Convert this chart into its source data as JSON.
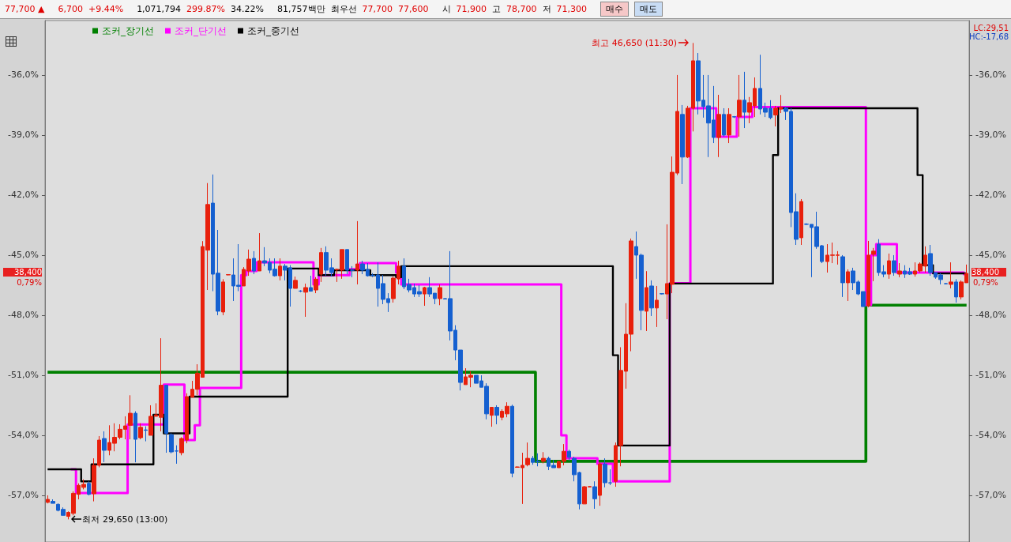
{
  "chart_data": {
    "type": "candlestick",
    "legend": "top left",
    "tick_labels": "y",
    "categories": [
      null,
      null,
      null,
      null,
      null,
      null,
      null,
      null,
      null,
      null,
      null,
      null,
      null,
      null,
      null,
      null,
      null,
      null,
      null,
      null,
      null,
      null,
      null,
      null,
      null,
      null,
      null,
      null,
      null,
      null,
      null,
      null,
      null,
      null,
      null,
      null,
      null,
      null,
      null,
      null,
      null,
      null,
      null,
      null,
      null,
      null,
      null,
      null,
      null,
      null,
      null,
      null,
      null,
      null,
      null,
      null,
      null,
      null,
      null,
      null,
      null,
      null,
      null,
      null,
      null,
      null,
      null,
      null,
      null,
      null,
      null,
      null,
      null,
      null,
      null,
      null,
      null,
      null,
      null,
      null,
      null,
      null,
      null,
      null,
      null,
      null,
      null,
      null,
      null,
      null,
      null,
      null,
      null,
      null,
      null,
      null,
      null,
      null,
      null,
      null,
      null,
      null,
      null,
      null,
      null,
      null,
      null,
      null,
      null,
      null,
      null,
      null,
      null,
      null,
      null,
      null,
      null,
      null,
      null,
      null,
      null,
      null,
      null,
      null,
      null,
      null,
      null,
      null,
      null,
      null,
      null,
      null,
      null,
      null,
      null,
      null,
      null,
      null,
      null,
      null,
      null,
      null,
      null,
      null,
      null,
      null,
      null,
      null,
      null,
      null,
      null,
      null,
      null,
      null,
      null,
      null,
      null,
      null,
      null,
      null,
      null,
      null,
      null,
      null,
      null,
      null,
      null,
      null,
      null,
      null,
      null,
      null,
      null,
      null,
      null,
      null,
      null,
      null,
      null
    ],
    "ylim": [
      -59.33,
      -33.28
    ],
    "yticks": [
      {
        "value": -36,
        "label": "-36,0%"
      },
      {
        "value": -39,
        "label": "-39,0%"
      },
      {
        "value": -42,
        "label": "-42,0%"
      },
      {
        "value": -45,
        "label": "-45,0%"
      },
      {
        "value": -48,
        "label": "-48,0%"
      },
      {
        "value": -51,
        "label": "-51,0%"
      },
      {
        "value": -54,
        "label": "-54,0%"
      },
      {
        "value": -57,
        "label": "-57,0%"
      }
    ],
    "y2lim": [
      -59.33,
      -33.28
    ],
    "y2ticks": [
      {
        "value": -36,
        "label": "-36,0%"
      },
      {
        "value": -39,
        "label": "-39,0%"
      },
      {
        "value": -42,
        "label": "-42,0%"
      },
      {
        "value": -45,
        "label": "-45,0%"
      },
      {
        "value": -48,
        "label": "-48,0%"
      },
      {
        "value": -51,
        "label": "-51,0%"
      },
      {
        "value": -54,
        "label": "-54,0%"
      },
      {
        "value": -57,
        "label": "-57,0%"
      }
    ],
    "annotations": [
      "최고 46,650 (11:30)",
      "최저 29,650 (13:00)",
      "38,400",
      "0,79%",
      "38,400",
      "0,79%",
      "LC:29,51",
      "HC:-17,68",
      "77,700 ▲",
      "6,700",
      "+9.44%",
      "1,071,794",
      "299.87%",
      "34.22%",
      "81,757백만",
      "최우선",
      "77,700",
      "77,600",
      "시",
      "71,900",
      "고",
      "78,700",
      "저",
      "71,300",
      "매수",
      "매도"
    ],
    "series": [
      {
        "colors": [
          "#e8200c",
          "#1560d0",
          "#1560d0",
          "#1560d0",
          "#e8200c",
          "#e8200c",
          "#e8200c",
          "#e8200c",
          "#1560d0",
          "#e8200c",
          "#e8200c",
          "#1560d0",
          "#e8200c",
          "#e8200c",
          "#e8200c",
          "#e8200c",
          "#e8200c",
          "#1560d0",
          "#e8200c",
          "#1560d0",
          "#e8200c",
          "#e8200c",
          "#e8200c",
          "#1560d0",
          "#1560d0",
          "#1560d0",
          "#e8200c",
          "#e8200c",
          "#e8200c",
          "#e8200c",
          "#e8200c",
          "#e8200c",
          "#1560d0",
          "#1560d0",
          "#e8200c",
          "#e8200c",
          "#1560d0",
          "#1560d0",
          "#e8200c",
          "#e8200c",
          "#1560d0",
          "#e8200c",
          "#1560d0",
          "#1560d0",
          "#1560d0",
          "#e8200c",
          "#1560d0",
          "#1560d0",
          "#e8200c",
          "#1560d0",
          "#e8200c",
          "#1560d0",
          "#e8200c",
          "#e8200c",
          "#1560d0",
          "#1560d0",
          "#e8200c",
          "#e8200c",
          "#1560d0",
          "#1560d0",
          "#e8200c",
          "#1560d0",
          "#1560d0",
          "#1560d0",
          "#1560d0",
          "#1560d0",
          "#1560d0",
          "#e8200c",
          "#e8200c",
          "#1560d0",
          "#1560d0",
          "#1560d0",
          "#1560d0",
          "#e8200c",
          "#1560d0",
          "#1560d0",
          "#e8200c",
          "#1560d0",
          "#1560d0",
          "#1560d0",
          "#1560d0",
          "#e8200c",
          "#e8200c",
          "#1560d0",
          "#1560d0",
          "#1560d0",
          "#e8200c",
          "#1560d0",
          "#e8200c",
          "#e8200c",
          "#1560d0",
          "#e8200c",
          "#e8200c",
          "#e8200c",
          "#1560d0",
          "#1560d0",
          "#e8200c",
          "#1560d0",
          "#1560d0",
          "#e8200c",
          "#e8200c",
          "#1560d0",
          "#1560d0",
          "#1560d0",
          "#e8200c",
          "#e8200c",
          "#1560d0",
          "#e8200c",
          "#1560d0",
          "#1560d0",
          "#e8200c",
          "#e8200c",
          "#e8200c",
          "#e8200c",
          "#1560d0",
          "#1560d0",
          "#e8200c",
          "#1560d0",
          "#e8200c",
          "#1560d0",
          "#e8200c",
          "#e8200c",
          "#e8200c",
          "#1560d0",
          "#e8200c",
          "#e8200c",
          "#1560d0",
          "#1560d0",
          "#1560d0",
          "#1560d0",
          "#e8200c",
          "#1560d0",
          "#e8200c",
          "#1560d0",
          "#e8200c",
          "#1560d0",
          "#e8200c",
          "#e8200c",
          "#1560d0",
          "#1560d0",
          "#1560d0",
          "#e8200c",
          "#e8200c",
          "#1560d0",
          "#1560d0",
          "#1560d0",
          "#e8200c",
          "#1560d0",
          "#1560d0",
          "#1560d0",
          "#1560d0",
          "#e8200c",
          "#e8200c",
          "#e8200c",
          "#1560d0",
          "#e8200c",
          "#1560d0",
          "#1560d0",
          "#1560d0",
          "#e8200c",
          "#e8200c",
          "#1560d0",
          "#1560d0",
          "#e8200c",
          "#1560d0",
          "#e8200c",
          "#1560d0",
          "#1560d0",
          "#e8200c",
          "#e8200c",
          "#e8200c",
          "#1560d0",
          "#1560d0",
          "#1560d0",
          "#1560d0",
          "#e8200c",
          "#1560d0",
          "#e8200c",
          "#e8200c"
        ],
        "ohlc": [
          [
            -57.35,
            -57.0,
            -57.4,
            -57.2
          ],
          [
            -57.3,
            -57.2,
            -57.4,
            -57.4
          ],
          [
            -57.45,
            -57.4,
            -57.8,
            -57.75
          ],
          [
            -57.7,
            -57.6,
            -58.0,
            -58.0
          ],
          [
            -58.05,
            -57.8,
            -58.2,
            -57.85
          ],
          [
            -57.9,
            -56.8,
            -58.0,
            -56.9
          ],
          [
            -56.95,
            -56.4,
            -57.2,
            -56.5
          ],
          [
            -56.6,
            -56.2,
            -56.7,
            -56.45
          ],
          [
            -56.4,
            -56.3,
            -57.0,
            -56.95
          ],
          [
            -56.92,
            -55.15,
            -57.3,
            -55.5
          ],
          [
            -55.5,
            -54.04,
            -55.6,
            -54.24
          ],
          [
            -54.16,
            -53.8,
            -55.34,
            -54.75
          ],
          [
            -54.75,
            -53.5,
            -55.0,
            -54.36
          ],
          [
            -54.4,
            -53.4,
            -54.8,
            -54.1
          ],
          [
            -54.1,
            -53.45,
            -54.2,
            -53.7
          ],
          [
            -53.7,
            -53.05,
            -54.2,
            -53.53
          ],
          [
            -53.5,
            -52.0,
            -54.2,
            -52.9
          ],
          [
            -52.9,
            -52.8,
            -55.35,
            -54.2
          ],
          [
            -54.12,
            -53.4,
            -54.2,
            -53.6
          ],
          [
            -53.73,
            -53.55,
            -54.3,
            -53.75
          ],
          [
            -54.0,
            -52.5,
            -54.0,
            -53.05
          ],
          [
            -53.05,
            -52.4,
            -53.05,
            -52.98
          ],
          [
            -53.1,
            -49.15,
            -53.8,
            -51.5
          ],
          [
            -51.5,
            -51.5,
            -54.87,
            -53.9
          ],
          [
            -53.97,
            -53.9,
            -54.9,
            -54.83
          ],
          [
            -54.78,
            -54.5,
            -55.42,
            -54.79
          ],
          [
            -54.87,
            -54.1,
            -55.0,
            -54.16
          ],
          [
            -54.24,
            -51.9,
            -54.4,
            -52.07
          ],
          [
            -52.1,
            -51.28,
            -52.1,
            -51.7
          ],
          [
            -51.7,
            -50.45,
            -51.99,
            -50.9
          ],
          [
            -51.1,
            -44.3,
            -51.1,
            -44.57
          ],
          [
            -44.75,
            -41.4,
            -46.74,
            -42.47
          ],
          [
            -42.4,
            -40.97,
            -46.8,
            -45.95
          ],
          [
            -45.9,
            -43.74,
            -48.0,
            -47.8
          ],
          [
            -47.84,
            -46.2,
            -48.0,
            -46.34
          ],
          [
            -45.99,
            -45.95,
            -46.0,
            -45.97
          ],
          [
            -45.99,
            -45.16,
            -47.29,
            -46.54
          ],
          [
            -46.5,
            -44.45,
            -46.8,
            -46.56
          ],
          [
            -46.54,
            -45.6,
            -46.54,
            -45.71
          ],
          [
            -45.79,
            -44.72,
            -46.03,
            -45.2
          ],
          [
            -45.16,
            -44.8,
            -45.95,
            -45.79
          ],
          [
            -45.79,
            -43.9,
            -45.79,
            -45.28
          ],
          [
            -45.28,
            -44.6,
            -45.55,
            -45.39
          ],
          [
            -45.36,
            -45.16,
            -45.9,
            -45.75
          ],
          [
            -45.7,
            -45.16,
            -46.07,
            -46.03
          ],
          [
            -46.03,
            -45.16,
            -46.26,
            -45.55
          ],
          [
            -45.55,
            -45.44,
            -46.26,
            -45.75
          ],
          [
            -45.63,
            -45.5,
            -47.57,
            -46.66
          ],
          [
            -46.66,
            -46.07,
            -46.66,
            -46.26
          ],
          [
            -46.79,
            -46.75,
            -46.85,
            -46.8
          ],
          [
            -46.85,
            -46.42,
            -48.08,
            -46.62
          ],
          [
            -46.62,
            -46.03,
            -46.82,
            -46.8
          ],
          [
            -46.74,
            -46.1,
            -46.9,
            -46.2
          ],
          [
            -45.95,
            -44.64,
            -46.34,
            -44.87
          ],
          [
            -44.87,
            -44.56,
            -46.03,
            -45.75
          ],
          [
            -45.63,
            -45.16,
            -46.07,
            -45.87
          ],
          [
            -45.73,
            -45.67,
            -46.34,
            -45.71
          ],
          [
            -45.75,
            -44.72,
            -46.18,
            -44.72
          ],
          [
            -44.72,
            -44.72,
            -45.95,
            -45.75
          ],
          [
            -45.75,
            -45.55,
            -46.1,
            -45.76
          ],
          [
            -45.75,
            -43.3,
            -46.46,
            -45.44
          ],
          [
            -45.44,
            -45.28,
            -45.95,
            -45.75
          ],
          [
            -45.71,
            -45.4,
            -46.07,
            -46.03
          ],
          [
            -46.0,
            -45.9,
            -46.1,
            -46.02
          ],
          [
            -45.99,
            -45.36,
            -47.57,
            -46.66
          ],
          [
            -46.42,
            -45.99,
            -47.45,
            -47.21
          ],
          [
            -47.17,
            -46.9,
            -47.84,
            -47.37
          ],
          [
            -47.17,
            -46.07,
            -47.37,
            -46.15
          ],
          [
            -46.19,
            -45.28,
            -46.46,
            -45.55
          ],
          [
            -45.55,
            -45.16,
            -46.7,
            -46.58
          ],
          [
            -46.46,
            -46.18,
            -46.86,
            -46.74
          ],
          [
            -46.62,
            -46.42,
            -47.09,
            -46.94
          ],
          [
            -46.82,
            -46.5,
            -47.09,
            -46.94
          ],
          [
            -46.94,
            -46.58,
            -47.53,
            -46.62
          ],
          [
            -46.62,
            -46.1,
            -47.09,
            -46.94
          ],
          [
            -46.9,
            -46.9,
            -47.45,
            -47.17
          ],
          [
            -47.17,
            -46.46,
            -47.5,
            -46.62
          ],
          [
            -47.17,
            -47.15,
            -47.2,
            -47.19
          ],
          [
            -47.17,
            -44.8,
            -49.26,
            -48.79
          ],
          [
            -48.75,
            -48.5,
            -50.25,
            -49.74
          ],
          [
            -49.74,
            -49.74,
            -51.76,
            -51.36
          ],
          [
            -51.47,
            -50.65,
            -51.47,
            -51.08
          ],
          [
            -51.1,
            -50.8,
            -51.6,
            -51.0
          ],
          [
            -51.0,
            -51.0,
            -51.4,
            -51.4
          ],
          [
            -51.28,
            -51.0,
            -51.6,
            -51.6
          ],
          [
            -51.55,
            -51.4,
            -53.2,
            -52.93
          ],
          [
            -53.0,
            -52.6,
            -53.57,
            -52.6
          ],
          [
            -52.6,
            -52.5,
            -53.45,
            -53.0
          ],
          [
            -53.1,
            -52.7,
            -53.25,
            -52.8
          ],
          [
            -52.93,
            -52.35,
            -53.1,
            -52.55
          ],
          [
            -52.55,
            -52.47,
            -56.1,
            -55.9
          ],
          [
            -55.6,
            -55.55,
            -55.62,
            -55.58
          ],
          [
            -55.62,
            -54.87,
            -57.43,
            -55.5
          ],
          [
            -55.47,
            -54.36,
            -55.55,
            -55.15
          ],
          [
            -55.15,
            -55.03,
            -55.47,
            -55.35
          ],
          [
            -55.3,
            -54.9,
            -55.55,
            -55.32
          ],
          [
            -55.3,
            -54.84,
            -55.4,
            -55.15
          ],
          [
            -55.15,
            -55.07,
            -55.74,
            -55.55
          ],
          [
            -55.5,
            -55.23,
            -55.62,
            -55.62
          ],
          [
            -55.62,
            -55.3,
            -55.62,
            -55.3
          ],
          [
            -55.3,
            -54.44,
            -55.5,
            -54.8
          ],
          [
            -54.8,
            -54.72,
            -55.27,
            -55.1
          ],
          [
            -55.15,
            -55.07,
            -56.3,
            -55.97
          ],
          [
            -55.86,
            -55.82,
            -57.7,
            -57.43
          ],
          [
            -57.43,
            -56.53,
            -57.43,
            -56.57
          ],
          [
            -56.58,
            -56.55,
            -56.6,
            -56.56
          ],
          [
            -56.57,
            -56.3,
            -57.67,
            -57.17
          ],
          [
            -57.0,
            -55.34,
            -57.52,
            -55.43
          ],
          [
            -55.43,
            -55.15,
            -56.6,
            -56.37
          ],
          [
            -56.37,
            -55.7,
            -56.49,
            -56.38
          ],
          [
            -56.3,
            -54.36,
            -56.57,
            -54.51
          ],
          [
            -54.51,
            -49.6,
            -55.55,
            -50.76
          ],
          [
            -50.8,
            -47.4,
            -51.67,
            -48.95
          ],
          [
            -48.95,
            -44.17,
            -49.8,
            -44.29
          ],
          [
            -44.57,
            -43.82,
            -46.18,
            -45.0
          ],
          [
            -45.0,
            -44.92,
            -48.75,
            -47.76
          ],
          [
            -47.8,
            -45.8,
            -48.79,
            -46.62
          ],
          [
            -46.54,
            -46.26,
            -48.04,
            -47.64
          ],
          [
            -47.64,
            -46.54,
            -48.59,
            -47.25
          ],
          [
            -46.92,
            -46.9,
            -46.96,
            -46.94
          ],
          [
            -46.94,
            -43.46,
            -48.2,
            -46.42
          ],
          [
            -46.46,
            -40.07,
            -46.9,
            -40.86
          ],
          [
            -40.9,
            -36.0,
            -41.0,
            -37.82
          ],
          [
            -37.97,
            -37.5,
            -41.45,
            -40.1
          ],
          [
            -40.1,
            -37.54,
            -40.15,
            -37.66
          ],
          [
            -37.66,
            -34.4,
            -38.82,
            -35.29
          ],
          [
            -35.29,
            -34.9,
            -37.97,
            -37.3
          ],
          [
            -37.26,
            -36.0,
            -38.13,
            -37.58
          ],
          [
            -37.54,
            -36.0,
            -40.1,
            -38.4
          ],
          [
            -38.25,
            -36.55,
            -39.4,
            -39.12
          ],
          [
            -39.12,
            -36.99,
            -40.1,
            -37.97
          ],
          [
            -37.97,
            -37.66,
            -39.08,
            -39.0
          ],
          [
            -39.0,
            -37.66,
            -39.4,
            -37.97
          ],
          [
            -38.08,
            -38.05,
            -38.15,
            -38.1
          ],
          [
            -38.09,
            -36.0,
            -39.08,
            -37.26
          ],
          [
            -37.26,
            -35.84,
            -38.65,
            -37.86
          ],
          [
            -37.86,
            -37.1,
            -38.41,
            -37.38
          ],
          [
            -37.54,
            -36.12,
            -38.1,
            -36.67
          ],
          [
            -36.67,
            -34.99,
            -37.97,
            -37.7
          ],
          [
            -37.66,
            -37.38,
            -38.1,
            -37.86
          ],
          [
            -37.66,
            -37.26,
            -38.21,
            -38.13
          ],
          [
            -38.0,
            -37.54,
            -38.57,
            -37.66
          ],
          [
            -37.7,
            -37.0,
            -37.9,
            -37.62
          ],
          [
            -37.66,
            -37.6,
            -38.25,
            -37.82
          ],
          [
            -37.82,
            -37.66,
            -43.6,
            -42.87
          ],
          [
            -42.83,
            -41.91,
            -44.49,
            -44.21
          ],
          [
            -44.13,
            -42.2,
            -44.49,
            -42.32
          ],
          [
            -43.45,
            -43.4,
            -43.5,
            -43.46
          ],
          [
            -43.46,
            -43.46,
            -46.1,
            -43.62
          ],
          [
            -43.58,
            -42.83,
            -44.68,
            -44.57
          ],
          [
            -44.53,
            -44.49,
            -45.4,
            -45.32
          ],
          [
            -45.32,
            -44.45,
            -45.87,
            -45.0
          ],
          [
            -45.01,
            -44.37,
            -45.4,
            -44.99
          ],
          [
            -45.01,
            -44.8,
            -45.47,
            -44.99
          ],
          [
            -45.08,
            -45.0,
            -47.09,
            -46.38
          ],
          [
            -46.38,
            -45.71,
            -47.29,
            -45.83
          ],
          [
            -45.79,
            -45.63,
            -46.74,
            -46.38
          ],
          [
            -46.34,
            -46.26,
            -47.0,
            -46.94
          ],
          [
            -46.82,
            -46.82,
            -47.57,
            -47.57
          ],
          [
            -47.53,
            -44.29,
            -47.6,
            -45.0
          ],
          [
            -44.96,
            -44.64,
            -46.3,
            -44.8
          ],
          [
            -44.45,
            -44.2,
            -46.03,
            -45.87
          ],
          [
            -45.83,
            -45.5,
            -46.1,
            -45.95
          ],
          [
            -45.95,
            -44.92,
            -46.18,
            -45.28
          ],
          [
            -45.28,
            -45.0,
            -46.03,
            -45.87
          ],
          [
            -45.95,
            -45.4,
            -46.1,
            -45.79
          ],
          [
            -45.79,
            -45.5,
            -46.14,
            -45.95
          ],
          [
            -45.83,
            -45.63,
            -45.99,
            -45.95
          ],
          [
            -45.95,
            -45.36,
            -46.07,
            -45.79
          ],
          [
            -45.79,
            -45.36,
            -45.87,
            -45.44
          ],
          [
            -45.55,
            -44.56,
            -45.87,
            -45.0
          ],
          [
            -44.92,
            -44.49,
            -46.03,
            -45.87
          ],
          [
            -45.87,
            -45.87,
            -46.18,
            -46.1
          ],
          [
            -45.99,
            -45.91,
            -46.46,
            -46.22
          ],
          [
            -46.42,
            -46.4,
            -46.44,
            -46.43
          ],
          [
            -46.46,
            -45.36,
            -46.66,
            -46.34
          ],
          [
            -46.34,
            -46.2,
            -47.37,
            -47.09
          ],
          [
            -47.09,
            -46.26,
            -47.21,
            -46.34
          ],
          [
            -46.38,
            -45.47,
            -46.38,
            -45.91
          ]
        ]
      },
      {
        "type": "step",
        "name": "조커_장기선",
        "color": "#008000",
        "values": [
          -50.85,
          -50.85,
          -50.85,
          -50.85,
          -50.85,
          -50.85,
          -50.85,
          -50.85,
          -50.85,
          -50.85,
          -50.85,
          -50.85,
          -50.85,
          -50.85,
          -50.85,
          -50.85,
          -50.85,
          -50.85,
          -50.85,
          -50.85,
          -50.85,
          -50.85,
          -50.85,
          -50.85,
          -50.85,
          -50.85,
          -50.85,
          -50.85,
          -50.85,
          -50.85,
          -50.85,
          -50.85,
          -50.85,
          -50.85,
          -50.85,
          -50.85,
          -50.85,
          -50.85,
          -50.85,
          -50.85,
          -50.85,
          -50.85,
          -50.85,
          -50.85,
          -50.85,
          -50.85,
          -50.85,
          -50.85,
          -50.85,
          -50.85,
          -50.85,
          -50.85,
          -50.85,
          -50.85,
          -50.85,
          -50.85,
          -50.85,
          -50.85,
          -50.85,
          -50.85,
          -50.85,
          -50.85,
          -50.85,
          -50.85,
          -50.85,
          -50.85,
          -50.85,
          -50.85,
          -50.85,
          -50.85,
          -50.85,
          -50.85,
          -50.85,
          -50.85,
          -50.85,
          -50.85,
          -50.85,
          -50.85,
          -50.85,
          -50.85,
          -50.85,
          -50.85,
          -50.85,
          -50.85,
          -50.85,
          -50.85,
          -50.85,
          -50.85,
          -50.85,
          -50.85,
          -50.85,
          -50.85,
          -50.85,
          -50.85,
          -50.85,
          -55.3,
          -55.3,
          -55.3,
          -55.3,
          -55.3,
          -55.3,
          -55.3,
          -55.3,
          -55.3,
          -55.3,
          -55.3,
          -55.3,
          -55.3,
          -55.3,
          -55.3,
          -55.3,
          -55.3,
          -55.3,
          -55.3,
          -55.3,
          -55.3,
          -55.3,
          -55.3,
          -55.3,
          -55.3,
          -55.3,
          -55.3,
          -55.3,
          -55.3,
          -55.3,
          -55.3,
          -55.3,
          -55.3,
          -55.3,
          -55.3,
          -55.3,
          -55.3,
          -55.3,
          -55.3,
          -55.3,
          -55.3,
          -55.3,
          -55.3,
          -55.3,
          -55.3,
          -55.3,
          -55.3,
          -55.3,
          -55.3,
          -55.3,
          -55.3,
          -55.3,
          -55.3,
          -55.3,
          -55.3,
          -55.3,
          -55.3,
          -55.3,
          -55.3,
          -55.3,
          -55.3,
          -55.3,
          -55.3,
          -55.3,
          -47.5,
          -47.5,
          -47.5,
          -47.5,
          -47.5,
          -47.5,
          -47.5,
          -47.5,
          -47.5,
          -47.5,
          -47.5,
          -47.5,
          -47.5,
          -47.5,
          -47.5,
          -47.5,
          -47.5,
          -47.5,
          -47.5,
          -47.5
        ]
      },
      {
        "type": "step",
        "name": "조커_단기선",
        "color": "#ff00ff",
        "values": [
          null,
          null,
          null,
          null,
          null,
          -55.7,
          -56.88,
          -56.88,
          -56.88,
          -56.88,
          -56.88,
          -56.88,
          -56.88,
          -56.88,
          -56.88,
          -56.88,
          -53.46,
          -53.46,
          -53.46,
          -53.46,
          -53.46,
          -53.46,
          -53.46,
          -51.47,
          -51.47,
          -51.47,
          -51.47,
          -54.24,
          -54.24,
          -53.5,
          -51.63,
          -51.63,
          -51.63,
          -51.63,
          -51.63,
          -51.63,
          -51.63,
          -51.63,
          -46.0,
          -45.79,
          -45.79,
          -45.36,
          -45.36,
          -45.36,
          -45.36,
          -45.36,
          -45.36,
          -45.36,
          -45.36,
          -45.36,
          -45.36,
          -45.36,
          -46.46,
          -46.0,
          -46.0,
          -46.0,
          -46.0,
          -46.0,
          -46.0,
          -45.7,
          -45.7,
          -45.4,
          -45.4,
          -45.4,
          -45.4,
          -45.4,
          -45.4,
          -45.4,
          -45.87,
          -46.46,
          -46.46,
          -46.46,
          -46.46,
          -46.46,
          -46.46,
          -46.46,
          -46.46,
          -46.46,
          -46.46,
          -46.46,
          -46.46,
          -46.46,
          -46.46,
          -46.46,
          -46.46,
          -46.46,
          -46.46,
          -46.46,
          -46.46,
          -46.46,
          -46.46,
          -46.46,
          -46.46,
          -46.46,
          -46.46,
          -46.46,
          -46.46,
          -46.46,
          -46.46,
          -46.46,
          -54.0,
          -55.15,
          -55.15,
          -55.15,
          -55.15,
          -55.15,
          -55.15,
          -55.42,
          -55.42,
          -55.42,
          -56.3,
          -56.3,
          -56.3,
          -56.3,
          -56.3,
          -56.3,
          -56.3,
          -56.3,
          -56.3,
          -56.3,
          -56.3,
          -46.4,
          -46.4,
          -46.4,
          -46.4,
          -37.66,
          -37.66,
          -37.66,
          -37.66,
          -37.66,
          -39.08,
          -39.08,
          -39.08,
          -39.08,
          -38.1,
          -38.1,
          -38.1,
          -37.6,
          -37.6,
          -37.6,
          -37.6,
          -37.6,
          -37.6,
          -37.6,
          -37.6,
          -37.6,
          -37.6,
          -37.6,
          -37.6,
          -37.6,
          -37.6,
          -37.6,
          -37.6,
          -37.6,
          -37.6,
          -37.6,
          -37.6,
          -37.6,
          -37.6,
          -47.49,
          -45.0,
          -44.45,
          -44.45,
          -44.45,
          -44.45,
          -45.87,
          -45.87,
          -45.87,
          -45.87,
          -45.87,
          -45.87,
          -45.87,
          -45.87,
          -45.87,
          -45.87,
          -45.87,
          -45.87,
          -45.87,
          -45.95
        ]
      },
      {
        "type": "step",
        "name": "조커_중기선",
        "color": "#000000",
        "values": [
          -55.7,
          -55.7,
          -55.7,
          -55.7,
          -55.7,
          -55.7,
          -55.7,
          -56.3,
          -56.3,
          -55.45,
          -55.45,
          -55.45,
          -55.45,
          -55.45,
          -55.45,
          -55.45,
          -55.45,
          -55.45,
          -55.45,
          -55.45,
          -55.45,
          -52.97,
          -52.97,
          -53.9,
          -53.9,
          -53.9,
          -53.9,
          -53.9,
          -52.07,
          -52.07,
          -52.07,
          -52.07,
          -52.07,
          -52.07,
          -52.07,
          -52.07,
          -52.07,
          -52.07,
          -52.07,
          -52.07,
          -52.07,
          -52.07,
          -52.07,
          -52.07,
          -52.07,
          -52.07,
          -52.07,
          -45.67,
          -45.67,
          -45.67,
          -45.67,
          -45.67,
          -45.67,
          -46.0,
          -46.0,
          -46.0,
          -45.75,
          -45.75,
          -45.75,
          -45.75,
          -45.75,
          -45.75,
          -45.75,
          -46.0,
          -46.0,
          -46.0,
          -46.0,
          -46.0,
          -46.1,
          -45.55,
          -45.55,
          -45.55,
          -45.55,
          -45.55,
          -45.55,
          -45.55,
          -45.55,
          -45.55,
          -45.55,
          -45.55,
          -45.55,
          -45.55,
          -45.55,
          -45.55,
          -45.55,
          -45.55,
          -45.55,
          -45.55,
          -45.55,
          -45.55,
          -45.55,
          -45.55,
          -45.55,
          -45.55,
          -45.55,
          -45.55,
          -45.55,
          -45.55,
          -45.55,
          -45.55,
          -45.55,
          -45.55,
          -45.55,
          -45.55,
          -45.55,
          -45.55,
          -45.55,
          -45.55,
          -45.55,
          -45.55,
          -50.0,
          -54.51,
          -54.51,
          -54.51,
          -54.51,
          -54.51,
          -54.51,
          -54.51,
          -54.51,
          -54.51,
          -54.51,
          -46.42,
          -46.42,
          -46.42,
          -46.42,
          -46.42,
          -46.42,
          -46.42,
          -46.42,
          -46.42,
          -46.42,
          -46.42,
          -46.42,
          -46.42,
          -46.42,
          -46.42,
          -46.42,
          -46.42,
          -46.42,
          -46.42,
          -46.42,
          -40.0,
          -37.66,
          -37.66,
          -37.66,
          -37.66,
          -37.66,
          -37.66,
          -37.66,
          -37.66,
          -37.66,
          -37.66,
          -37.66,
          -37.66,
          -37.66,
          -37.66,
          -37.66,
          -37.66,
          -37.66,
          -37.66,
          -37.66,
          -37.66,
          -37.66,
          -37.66,
          -37.66,
          -37.66,
          -37.66,
          -37.66,
          -37.66,
          -41.0,
          -45.5,
          -45.5,
          -45.91,
          -45.91,
          -45.91,
          -45.91,
          -45.91,
          -45.91,
          -45.91
        ]
      }
    ]
  }
}
